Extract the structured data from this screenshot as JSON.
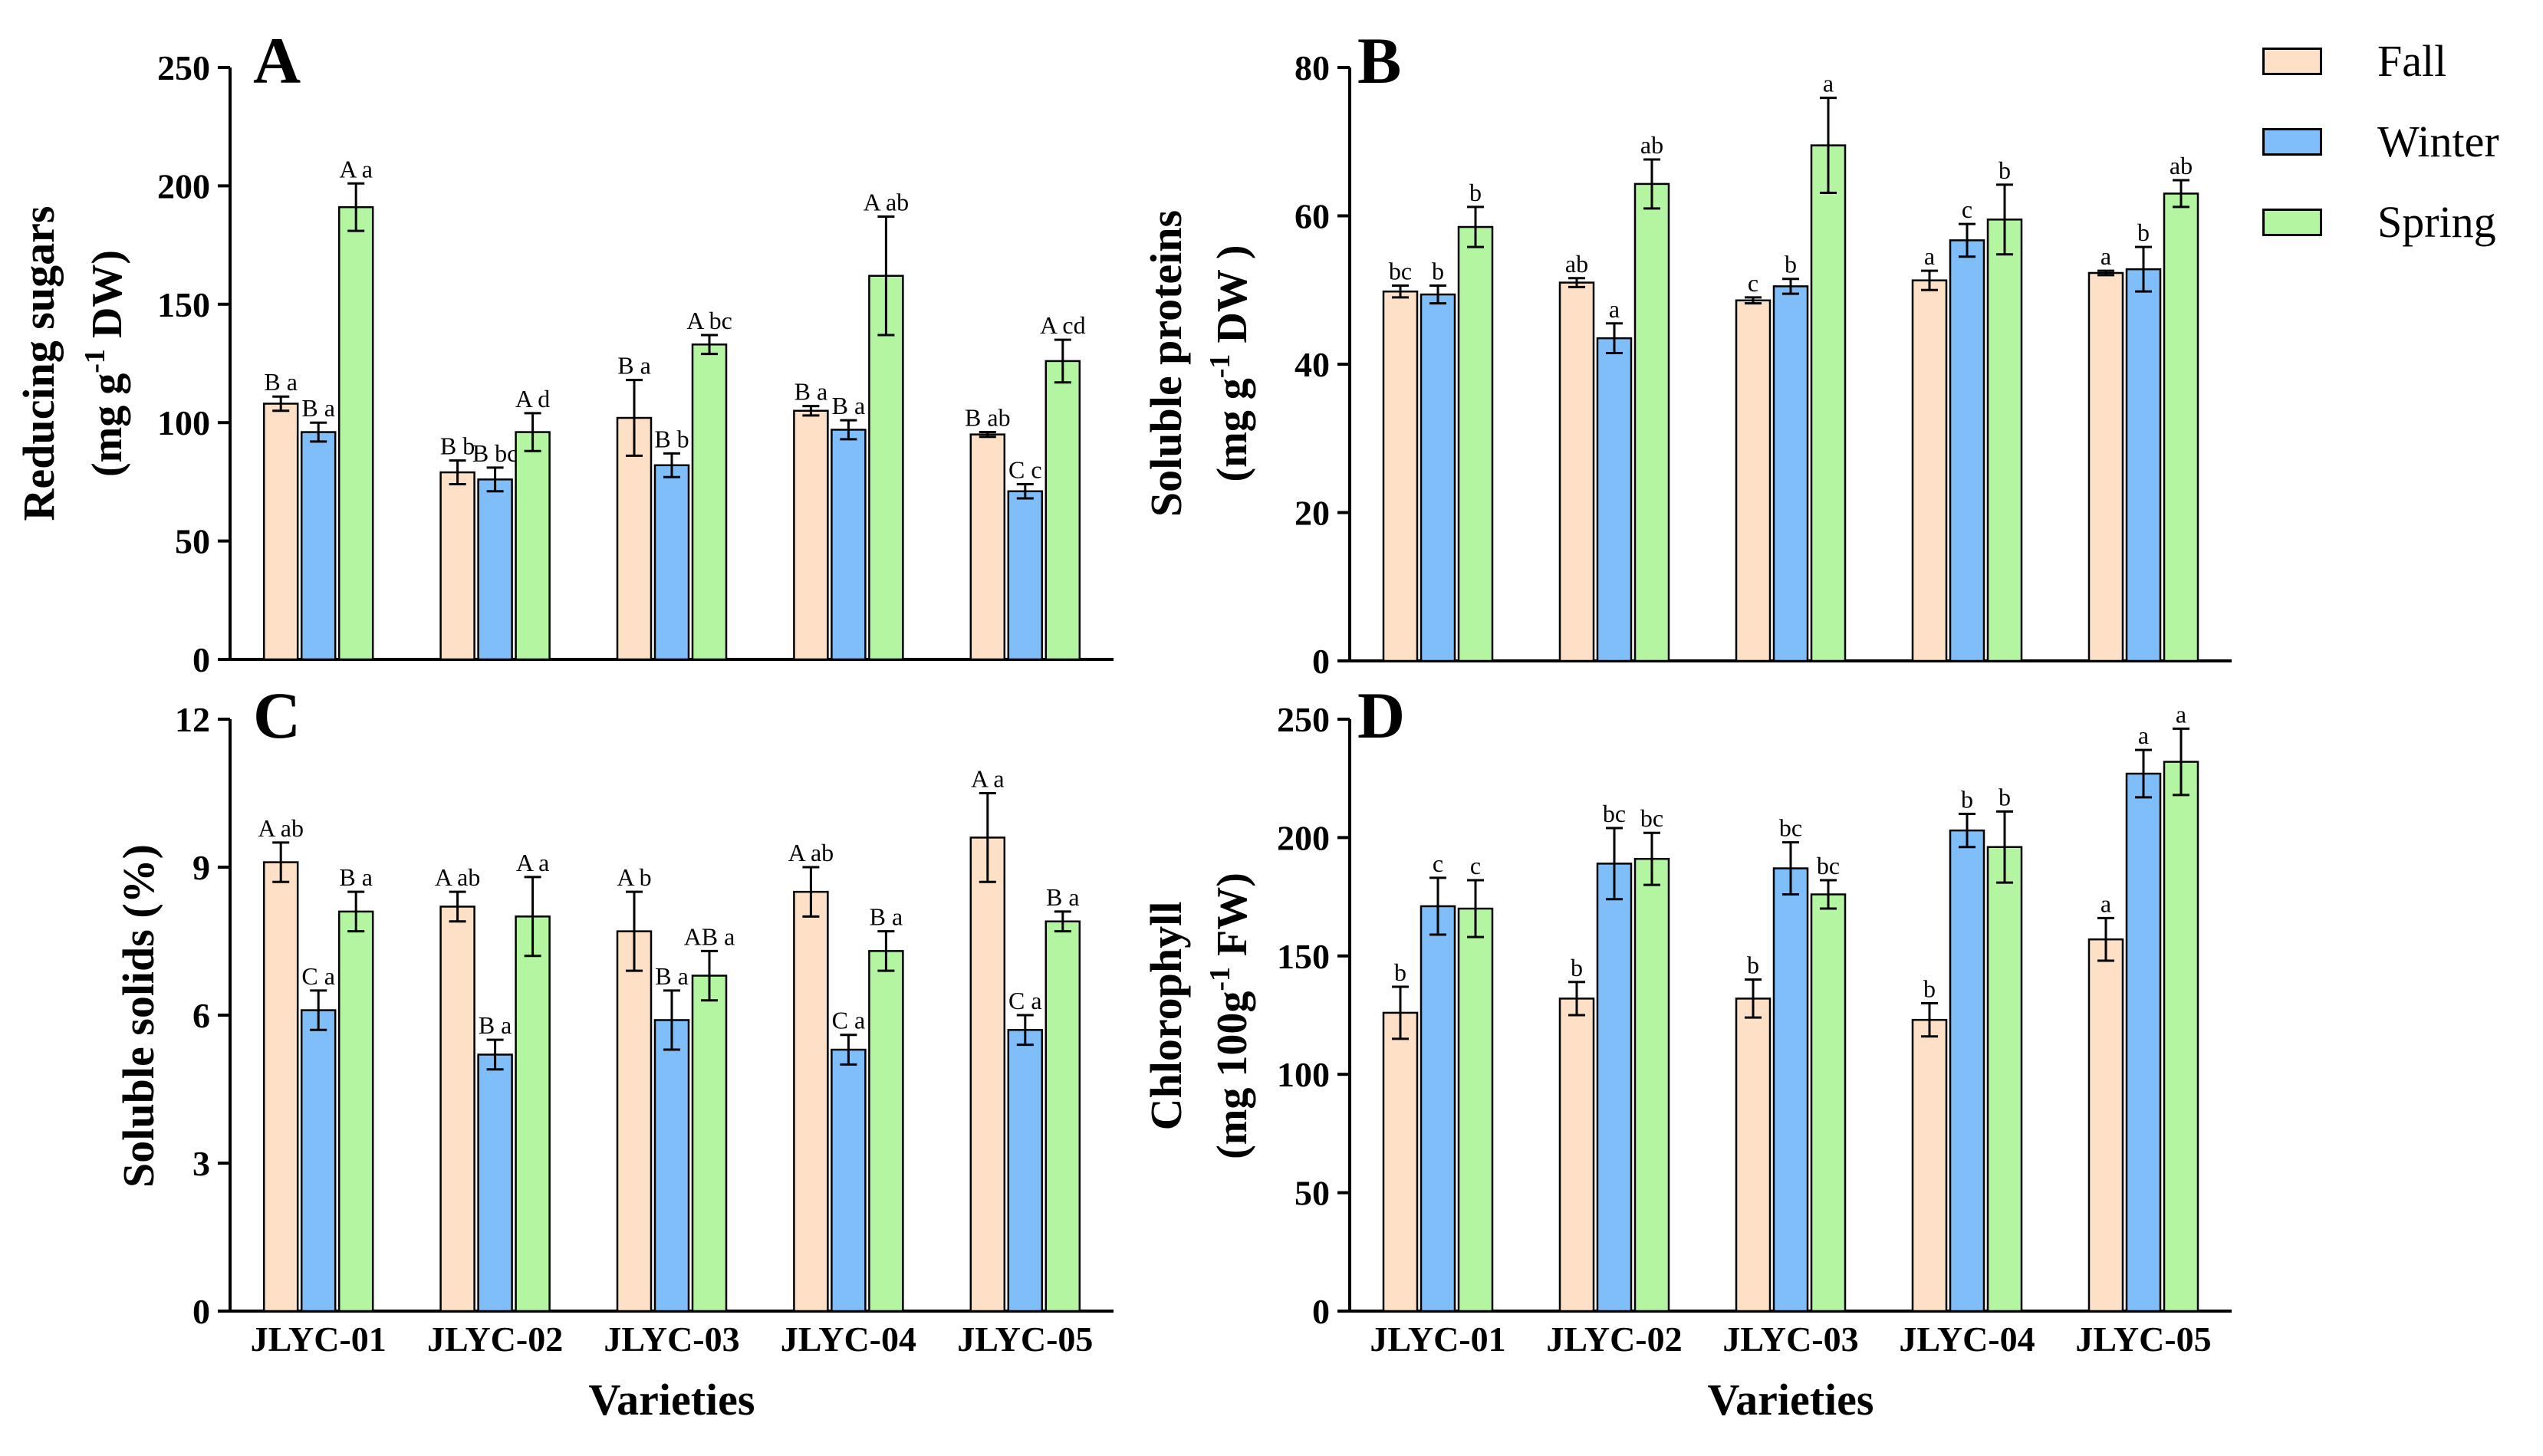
{
  "legend": [
    {
      "name": "Fall",
      "color": "#fde0c6"
    },
    {
      "name": "Winter",
      "color": "#7fbef8"
    },
    {
      "name": "Spring",
      "color": "#b4f5a2"
    }
  ],
  "colors": {
    "fall": "#fde0c6",
    "winter": "#7fbef8",
    "spring": "#b4f5a2",
    "axis": "#000000"
  },
  "x_axis_title": "Varieties",
  "chart_data": [
    {
      "panel": "A",
      "type": "bar",
      "title": "A",
      "ylabel_line1": "Reducing sugars",
      "ylabel_line2_pre": "(mg g",
      "ylabel_sup": "-1",
      "ylabel_line2_post": " DW)",
      "xlabel": "",
      "ylim": [
        0,
        250
      ],
      "yticks": [
        0,
        50,
        100,
        150,
        200,
        250
      ],
      "categories": [
        "JLYC-01",
        "JLYC-02",
        "JLYC-03",
        "JLYC-04",
        "JLYC-05"
      ],
      "show_category_labels": false,
      "series": [
        {
          "name": "Fall",
          "values": [
            108,
            79,
            102,
            105,
            95
          ],
          "errors": [
            3,
            5,
            16,
            2,
            1
          ],
          "labels": [
            "B a",
            "B b",
            "B a",
            "B a",
            "B ab"
          ]
        },
        {
          "name": "Winter",
          "values": [
            96,
            76,
            82,
            97,
            71
          ],
          "errors": [
            4,
            5,
            5,
            4,
            3
          ],
          "labels": [
            "B a",
            "B bc",
            "B b",
            "B a",
            "C c"
          ]
        },
        {
          "name": "Spring",
          "values": [
            191,
            96,
            133,
            162,
            126
          ],
          "errors": [
            10,
            8,
            4,
            25,
            9
          ],
          "labels": [
            "A a",
            "A d",
            "A bc",
            "A ab",
            "A cd"
          ]
        }
      ]
    },
    {
      "panel": "B",
      "type": "bar",
      "title": "B",
      "ylabel_line1": "Soluble proteins",
      "ylabel_line2_pre": "(mg g",
      "ylabel_sup": "-1",
      "ylabel_line2_post": " DW )",
      "xlabel": "",
      "ylim": [
        0,
        80
      ],
      "yticks": [
        0,
        20,
        40,
        60,
        80
      ],
      "categories": [
        "JLYC-01",
        "JLYC-02",
        "JLYC-03",
        "JLYC-04",
        "JLYC-05"
      ],
      "show_category_labels": false,
      "series": [
        {
          "name": "Fall",
          "values": [
            49.8,
            51.0,
            48.6,
            51.3,
            52.3
          ],
          "errors": [
            0.8,
            0.6,
            0.4,
            1.3,
            0.3
          ],
          "labels": [
            "bc",
            "ab",
            "c",
            "a",
            "a"
          ]
        },
        {
          "name": "Winter",
          "values": [
            49.4,
            43.5,
            50.5,
            56.7,
            52.8
          ],
          "errors": [
            1.2,
            2.0,
            1.0,
            2.2,
            3.0
          ],
          "labels": [
            "b",
            "a",
            "b",
            "c",
            "b"
          ]
        },
        {
          "name": "Spring",
          "values": [
            58.5,
            64.3,
            69.5,
            59.5,
            63.0
          ],
          "errors": [
            2.7,
            3.3,
            6.4,
            4.7,
            1.8
          ],
          "labels": [
            "b",
            "ab",
            "a",
            "b",
            "ab"
          ]
        }
      ]
    },
    {
      "panel": "C",
      "type": "bar",
      "title": "C",
      "ylabel_line1": "Soluble solids (%)",
      "ylabel_line2_pre": "",
      "ylabel_sup": "",
      "ylabel_line2_post": "",
      "xlabel": "Varieties",
      "ylim": [
        0,
        12
      ],
      "yticks": [
        0,
        3,
        6,
        9,
        12
      ],
      "categories": [
        "JLYC-01",
        "JLYC-02",
        "JLYC-03",
        "JLYC-04",
        "JLYC-05"
      ],
      "show_category_labels": true,
      "series": [
        {
          "name": "Fall",
          "values": [
            9.1,
            8.2,
            7.7,
            8.5,
            9.6
          ],
          "errors": [
            0.4,
            0.3,
            0.8,
            0.5,
            0.9
          ],
          "labels": [
            "A ab",
            "A ab",
            "A b",
            "A ab",
            "A a"
          ]
        },
        {
          "name": "Winter",
          "values": [
            6.1,
            5.2,
            5.9,
            5.3,
            5.7
          ],
          "errors": [
            0.4,
            0.3,
            0.6,
            0.3,
            0.3
          ],
          "labels": [
            "C a",
            "B a",
            "B a",
            "C a",
            "C a"
          ]
        },
        {
          "name": "Spring",
          "values": [
            8.1,
            8.0,
            6.8,
            7.3,
            7.9
          ],
          "errors": [
            0.4,
            0.8,
            0.5,
            0.4,
            0.2
          ],
          "labels": [
            "B a",
            "A a",
            "AB a",
            "B a",
            "B a"
          ]
        }
      ]
    },
    {
      "panel": "D",
      "type": "bar",
      "title": "D",
      "ylabel_line1": "Chlorophyll",
      "ylabel_line2_pre": "(mg 100g",
      "ylabel_sup": "-1",
      "ylabel_line2_post": " FW)",
      "xlabel": "Varieties",
      "ylim": [
        0,
        250
      ],
      "yticks": [
        0,
        50,
        100,
        150,
        200,
        250
      ],
      "categories": [
        "JLYC-01",
        "JLYC-02",
        "JLYC-03",
        "JLYC-04",
        "JLYC-05"
      ],
      "show_category_labels": true,
      "series": [
        {
          "name": "Fall",
          "values": [
            126,
            132,
            132,
            123,
            157
          ],
          "errors": [
            11,
            7,
            8,
            7,
            9
          ],
          "labels": [
            "b",
            "b",
            "b",
            "b",
            "a"
          ]
        },
        {
          "name": "Winter",
          "values": [
            171,
            189,
            187,
            203,
            227
          ],
          "errors": [
            12,
            15,
            11,
            7,
            10
          ],
          "labels": [
            "c",
            "bc",
            "bc",
            "b",
            "a"
          ]
        },
        {
          "name": "Spring",
          "values": [
            170,
            191,
            176,
            196,
            232
          ],
          "errors": [
            12,
            11,
            6,
            15,
            14
          ],
          "labels": [
            "c",
            "bc",
            "bc",
            "b",
            "a"
          ]
        }
      ]
    }
  ]
}
